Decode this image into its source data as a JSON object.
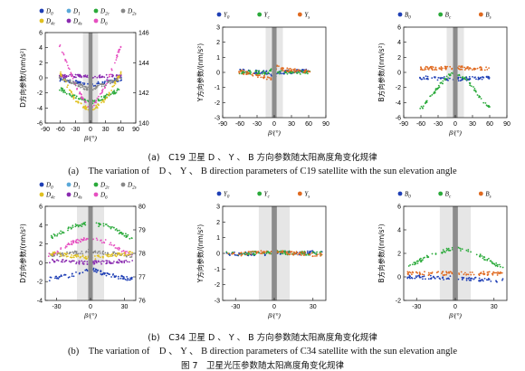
{
  "colors": {
    "D0": "#1f3fb5",
    "D1": "#5aa8d8",
    "D2c": "#2aaa3a",
    "D2s": "#888888",
    "D4c": "#e0c020",
    "D4s": "#8a2bb0",
    "D6": "#e64fc0",
    "blue": "#1f3fb5",
    "green": "#2aaa3a",
    "orange": "#e06a20"
  },
  "captions": {
    "a_cn": "(a)　C19 卫星 D 、 Y 、 B 方向参数随太阳高度角变化规律",
    "a_en": "(a)　The variation of　D 、 Y 、 B direction parameters of C19 satellite with the sun elevation angle",
    "b_cn": "(b)　C34 卫星 D 、 Y 、 B 方向参数随太阳高度角变化规律",
    "b_en": "(b)　The variation of　D 、 Y 、 B direction parameters of C34 satellite with the sun elevation angle",
    "figure": "图 7　卫星光压参数随太阳高度角变化规律"
  },
  "chart_data": [
    {
      "id": "c19-D",
      "type": "scatter",
      "satellite": "C19",
      "xlabel": "β/(°)",
      "ylabel": "D方向参数/(nm/s²)",
      "xlim": [
        -90,
        90
      ],
      "xticks": [
        -90,
        -60,
        -30,
        0,
        30,
        60,
        90
      ],
      "ylim": [
        -6,
        6
      ],
      "yticks": [
        -6,
        -4,
        -2,
        0,
        2,
        4,
        6
      ],
      "y2lim": [
        140,
        146
      ],
      "y2ticks": [
        140,
        142,
        144,
        146
      ],
      "legend": [
        "D0",
        "D1",
        "D2c",
        "D2s",
        "D4c",
        "D4s",
        "D6"
      ],
      "series": [
        {
          "name": "D0",
          "color_key": "D0",
          "axis": "left",
          "xr": [
            -62,
            62
          ],
          "curve": [
            [
              -60,
              -0.2
            ],
            [
              -30,
              -0.5
            ],
            [
              0,
              -1.0
            ],
            [
              30,
              -0.5
            ],
            [
              60,
              -0.2
            ]
          ]
        },
        {
          "name": "D2c",
          "color_key": "D2c",
          "axis": "left",
          "xr": [
            -62,
            62
          ],
          "curve": [
            [
              -60,
              -1.5
            ],
            [
              -30,
              -2.5
            ],
            [
              0,
              -3.3
            ],
            [
              30,
              -2.5
            ],
            [
              60,
              -1.5
            ]
          ]
        },
        {
          "name": "D4s",
          "color_key": "D4s",
          "axis": "left",
          "xr": [
            -62,
            62
          ],
          "curve": [
            [
              -60,
              0.2
            ],
            [
              0,
              0.2
            ],
            [
              60,
              0.2
            ]
          ]
        },
        {
          "name": "D6",
          "color_key": "D6",
          "axis": "left",
          "xr": [
            -62,
            62
          ],
          "curve": [
            [
              -60,
              4.2
            ],
            [
              -45,
              1.5
            ],
            [
              -30,
              -1.0
            ],
            [
              -15,
              -2.8
            ],
            [
              0,
              -4.0
            ],
            [
              15,
              -2.8
            ],
            [
              30,
              -1.0
            ],
            [
              45,
              1.5
            ],
            [
              60,
              4.2
            ]
          ]
        },
        {
          "name": "D2s",
          "color_key": "D2s",
          "axis": "right",
          "xr": [
            -62,
            62
          ],
          "curve": [
            [
              -60,
              143.0
            ],
            [
              -30,
              142.6
            ],
            [
              0,
              142.2
            ],
            [
              30,
              142.6
            ],
            [
              60,
              143.0
            ]
          ]
        },
        {
          "name": "D4c",
          "color_key": "D4c",
          "axis": "right",
          "xr": [
            -62,
            62
          ],
          "curve": [
            [
              -60,
              143.3
            ],
            [
              -30,
              141.5
            ],
            [
              0,
              140.8
            ],
            [
              30,
              141.5
            ],
            [
              60,
              143.3
            ]
          ]
        }
      ],
      "shade_band": [
        -15,
        15
      ],
      "eclipse_band": [
        -4,
        4
      ]
    },
    {
      "id": "c19-Y",
      "type": "scatter",
      "satellite": "C19",
      "xlabel": "β/(°)",
      "ylabel": "Y方向参数/(nm/s²)",
      "xlim": [
        -90,
        90
      ],
      "xticks": [
        -90,
        -60,
        -30,
        0,
        30,
        60,
        90
      ],
      "ylim": [
        -3,
        3
      ],
      "yticks": [
        -3,
        -2,
        -1,
        0,
        1,
        2,
        3
      ],
      "legend": [
        "Y0",
        "Yc",
        "Ys"
      ],
      "series": [
        {
          "name": "Y0",
          "color_key": "blue",
          "xr": [
            -62,
            62
          ],
          "curve": [
            [
              -60,
              0.1
            ],
            [
              -10,
              0.0
            ],
            [
              0,
              -0.3
            ],
            [
              10,
              0.0
            ],
            [
              60,
              0.1
            ]
          ]
        },
        {
          "name": "Yc",
          "color_key": "green",
          "xr": [
            -62,
            62
          ],
          "curve": [
            [
              -60,
              0.0
            ],
            [
              -10,
              0.0
            ],
            [
              0,
              0.3
            ],
            [
              10,
              0.0
            ],
            [
              60,
              0.0
            ]
          ]
        },
        {
          "name": "Ys",
          "color_key": "orange",
          "xr": [
            -62,
            62
          ],
          "curve": [
            [
              -60,
              0.05
            ],
            [
              -5,
              -0.4
            ],
            [
              0,
              -0.2
            ],
            [
              5,
              0.5
            ],
            [
              10,
              0.2
            ],
            [
              60,
              0.05
            ]
          ]
        }
      ],
      "shade_band": [
        -15,
        15
      ],
      "eclipse_band": [
        -4,
        4
      ]
    },
    {
      "id": "c19-B",
      "type": "scatter",
      "satellite": "C19",
      "xlabel": "β/(°)",
      "ylabel": "B方向参数/(nm/s²)",
      "xlim": [
        -90,
        90
      ],
      "xticks": [
        -90,
        -60,
        -30,
        0,
        30,
        60,
        90
      ],
      "ylim": [
        -6,
        6
      ],
      "yticks": [
        -6,
        -4,
        -2,
        0,
        2,
        4,
        6
      ],
      "legend": [
        "B0",
        "Bc",
        "Bs"
      ],
      "series": [
        {
          "name": "B0",
          "color_key": "blue",
          "xr": [
            -62,
            62
          ],
          "curve": [
            [
              -60,
              -0.7
            ],
            [
              0,
              -0.9
            ],
            [
              60,
              -0.7
            ]
          ]
        },
        {
          "name": "Bc",
          "color_key": "green",
          "xr": [
            -62,
            62
          ],
          "curve": [
            [
              -60,
              -4.8
            ],
            [
              -45,
              -3.5
            ],
            [
              -30,
              -2.0
            ],
            [
              -15,
              -0.6
            ],
            [
              0,
              0.0
            ],
            [
              15,
              -0.6
            ],
            [
              30,
              -2.0
            ],
            [
              45,
              -3.5
            ],
            [
              60,
              -4.8
            ]
          ]
        },
        {
          "name": "Bs",
          "color_key": "orange",
          "xr": [
            -62,
            62
          ],
          "curve": [
            [
              -60,
              0.5
            ],
            [
              0,
              0.6
            ],
            [
              60,
              0.5
            ]
          ]
        }
      ],
      "shade_band": [
        -15,
        15
      ],
      "eclipse_band": [
        -4,
        4
      ]
    },
    {
      "id": "c34-D",
      "type": "scatter",
      "satellite": "C34",
      "xlabel": "β/(°)",
      "ylabel": "D方向参数/(nm/s²)",
      "xlim": [
        -40,
        40
      ],
      "xticks": [
        -30,
        0,
        30
      ],
      "ylim": [
        -4,
        6
      ],
      "yticks": [
        -4,
        -2,
        0,
        2,
        4,
        6
      ],
      "y2lim": [
        76,
        80
      ],
      "y2ticks": [
        76,
        77,
        78,
        79,
        80
      ],
      "legend": [
        "D0",
        "D1",
        "D2c",
        "D2s",
        "D4c",
        "D4s",
        "D6"
      ],
      "series": [
        {
          "name": "D2c",
          "color_key": "D2c",
          "axis": "left",
          "xr": [
            -37,
            37
          ],
          "curve": [
            [
              -35,
              2.7
            ],
            [
              -15,
              3.9
            ],
            [
              0,
              4.2
            ],
            [
              15,
              3.9
            ],
            [
              35,
              2.7
            ]
          ]
        },
        {
          "name": "D6",
          "color_key": "D6",
          "axis": "left",
          "xr": [
            -37,
            37
          ],
          "curve": [
            [
              -35,
              0.8
            ],
            [
              -15,
              2.2
            ],
            [
              0,
              2.6
            ],
            [
              15,
              2.2
            ],
            [
              35,
              0.8
            ]
          ]
        },
        {
          "name": "D4s",
          "color_key": "D4s",
          "axis": "left",
          "xr": [
            -37,
            37
          ],
          "curve": [
            [
              -35,
              0.2
            ],
            [
              0,
              0.0
            ],
            [
              35,
              0.2
            ]
          ]
        },
        {
          "name": "D0",
          "color_key": "D0",
          "axis": "left",
          "xr": [
            -37,
            37
          ],
          "curve": [
            [
              -35,
              -1.7
            ],
            [
              -15,
              -1.3
            ],
            [
              0,
              -0.6
            ],
            [
              15,
              -1.3
            ],
            [
              35,
              -1.7
            ]
          ]
        },
        {
          "name": "D2s",
          "color_key": "D2s",
          "axis": "right",
          "xr": [
            -37,
            37
          ],
          "curve": [
            [
              -35,
              77.9
            ],
            [
              0,
              78.1
            ],
            [
              35,
              77.9
            ]
          ]
        },
        {
          "name": "D4c",
          "color_key": "D4c",
          "axis": "right",
          "xr": [
            -37,
            37
          ],
          "curve": [
            [
              -35,
              78.0
            ],
            [
              0,
              77.8
            ],
            [
              35,
              78.0
            ]
          ]
        }
      ],
      "shade_band": [
        -12,
        12
      ],
      "eclipse_band": [
        -2,
        2
      ]
    },
    {
      "id": "c34-Y",
      "type": "scatter",
      "satellite": "C34",
      "xlabel": "β/(°)",
      "ylabel": "Y方向参数/(nm/s²)",
      "xlim": [
        -40,
        40
      ],
      "xticks": [
        -30,
        0,
        30
      ],
      "ylim": [
        -3,
        3
      ],
      "yticks": [
        -3,
        -2,
        -1,
        0,
        1,
        2,
        3
      ],
      "legend": [
        "Y0",
        "Yc",
        "Ys"
      ],
      "series": [
        {
          "name": "Y0",
          "color_key": "blue",
          "xr": [
            -37,
            37
          ],
          "curve": [
            [
              -35,
              -0.05
            ],
            [
              0,
              0.0
            ],
            [
              35,
              0.05
            ]
          ]
        },
        {
          "name": "Yc",
          "color_key": "green",
          "xr": [
            -37,
            37
          ],
          "curve": [
            [
              -35,
              0.0
            ],
            [
              0,
              0.05
            ],
            [
              35,
              0.0
            ]
          ]
        },
        {
          "name": "Ys",
          "color_key": "orange",
          "xr": [
            -37,
            37
          ],
          "curve": [
            [
              -35,
              -0.1
            ],
            [
              0,
              0.1
            ],
            [
              35,
              -0.1
            ]
          ]
        }
      ],
      "shade_band": [
        -12,
        12
      ],
      "eclipse_band": [
        -2,
        2
      ]
    },
    {
      "id": "c34-B",
      "type": "scatter",
      "satellite": "C34",
      "xlabel": "β/(°)",
      "ylabel": "B方向参数/(nm/s²)",
      "xlim": [
        -40,
        40
      ],
      "xticks": [
        -30,
        0,
        30
      ],
      "ylim": [
        -2,
        6
      ],
      "yticks": [
        -2,
        0,
        2,
        4,
        6
      ],
      "legend": [
        "B0",
        "Bc",
        "Bs"
      ],
      "series": [
        {
          "name": "B0",
          "color_key": "blue",
          "xr": [
            -37,
            37
          ],
          "curve": [
            [
              -35,
              0.0
            ],
            [
              0,
              -0.1
            ],
            [
              35,
              -0.3
            ]
          ]
        },
        {
          "name": "Bc",
          "color_key": "green",
          "xr": [
            -37,
            37
          ],
          "curve": [
            [
              -35,
              1.0
            ],
            [
              -15,
              2.0
            ],
            [
              0,
              2.5
            ],
            [
              15,
              2.0
            ],
            [
              35,
              0.9
            ]
          ]
        },
        {
          "name": "Bs",
          "color_key": "orange",
          "xr": [
            -37,
            37
          ],
          "curve": [
            [
              -35,
              0.3
            ],
            [
              0,
              0.3
            ],
            [
              35,
              0.3
            ]
          ]
        }
      ],
      "shade_band": [
        -12,
        12
      ],
      "eclipse_band": [
        -2,
        2
      ]
    }
  ]
}
